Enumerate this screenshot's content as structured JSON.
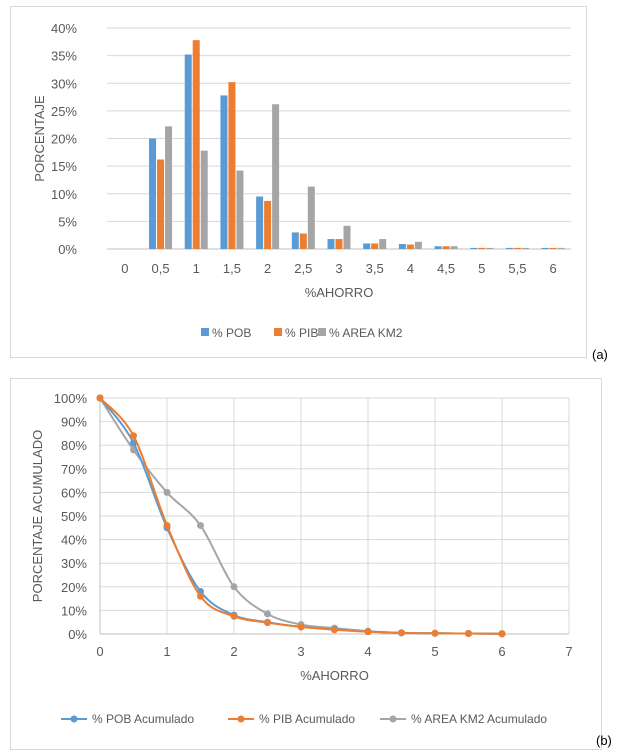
{
  "chart_data": [
    {
      "type": "bar",
      "xlabel": "%AHORRO",
      "ylabel": "PORCENTAJE",
      "categories": [
        "0",
        "0,5",
        "1",
        "1,5",
        "2",
        "2,5",
        "3",
        "3,5",
        "4",
        "4,5",
        "5",
        "5,5",
        "6"
      ],
      "ylim": [
        0,
        40
      ],
      "yticks": [
        "0%",
        "5%",
        "10%",
        "15%",
        "20%",
        "25%",
        "30%",
        "35%",
        "40%"
      ],
      "grid": true,
      "legend_position": "bottom",
      "series": [
        {
          "name": "% POB",
          "color": "#5b9bd5",
          "values": [
            0,
            20,
            35.2,
            27.8,
            9.5,
            3,
            1.8,
            1,
            0.9,
            0.5,
            0.2,
            0.2,
            0.2
          ]
        },
        {
          "name": "% PIB",
          "color": "#ed7d31",
          "values": [
            0,
            16.2,
            37.8,
            30.2,
            8.7,
            2.8,
            1.8,
            1,
            0.8,
            0.5,
            0.2,
            0.2,
            0.2
          ]
        },
        {
          "name": "% AREA KM2",
          "color": "#a5a5a5",
          "values": [
            0,
            22.2,
            17.8,
            14.2,
            26.2,
            11.3,
            4.2,
            1.8,
            1.3,
            0.5,
            0.2,
            0.2,
            0.2
          ]
        }
      ],
      "panel_label": "(a)"
    },
    {
      "type": "scatter",
      "xlabel": "%AHORRO",
      "ylabel": "PORCENTAJE ACUMULADO",
      "xlim": [
        0,
        7
      ],
      "ylim": [
        0,
        100
      ],
      "xticks": [
        "0",
        "1",
        "2",
        "3",
        "4",
        "5",
        "6",
        "7"
      ],
      "yticks": [
        "0%",
        "10%",
        "20%",
        "30%",
        "40%",
        "50%",
        "60%",
        "70%",
        "80%",
        "90%",
        "100%"
      ],
      "grid": true,
      "legend_position": "bottom",
      "x": [
        0,
        0.5,
        1,
        1.5,
        2,
        2.5,
        3,
        3.5,
        4,
        4.5,
        5,
        5.5,
        6
      ],
      "series": [
        {
          "name": "% POB Acumulado",
          "color": "#5b9bd5",
          "values": [
            100,
            81,
            45,
            18,
            8,
            5,
            3,
            2,
            1,
            0.5,
            0.3,
            0.2,
            0.1
          ]
        },
        {
          "name": "% PIB Acumulado",
          "color": "#ed7d31",
          "values": [
            100,
            84,
            46,
            16,
            7.5,
            4.8,
            3,
            1.8,
            1,
            0.5,
            0.3,
            0.2,
            0.1
          ]
        },
        {
          "name": "% AREA KM2 Acumulado",
          "color": "#a5a5a5",
          "values": [
            100,
            78,
            60,
            46,
            20,
            8.5,
            4,
            2.5,
            1.2,
            0.5,
            0.3,
            0.2,
            0.1
          ]
        }
      ],
      "panel_label": "(b)"
    }
  ]
}
